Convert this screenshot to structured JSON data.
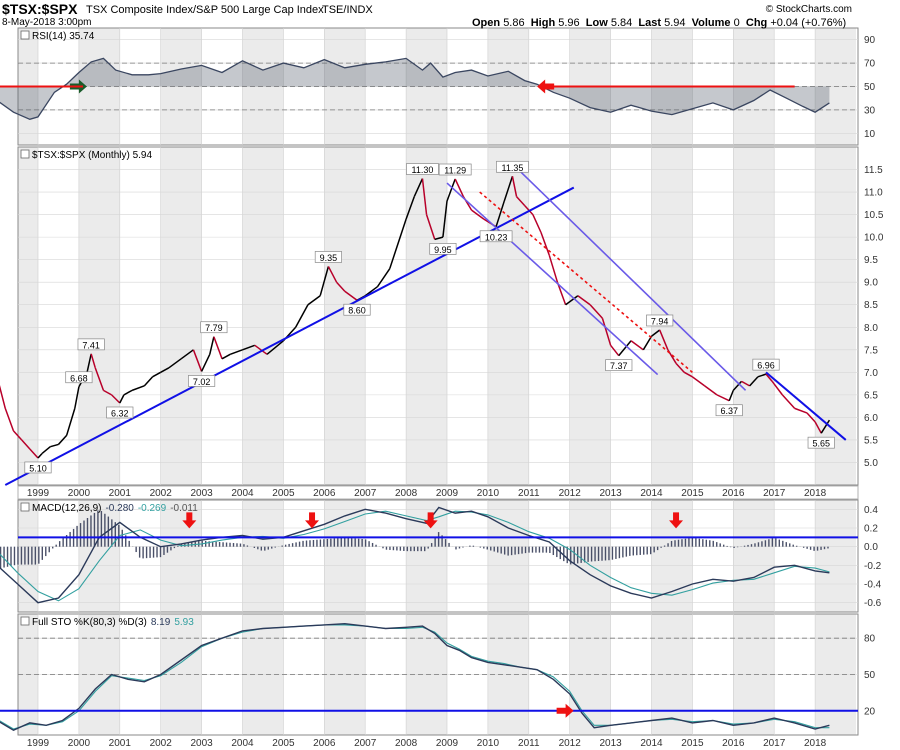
{
  "header": {
    "symbol": "$TSX:$SPX",
    "description": "TSX Composite Index/S&P 500 Large Cap Index",
    "exchange": "TSE/INDX",
    "date": "8-May-2018 3:00pm",
    "copyright": "© StockCharts.com",
    "open_label": "Open",
    "open": "5.86",
    "high_label": "High",
    "high": "5.96",
    "low_label": "Low",
    "low": "5.84",
    "last_label": "Last",
    "last": "5.94",
    "volume_label": "Volume",
    "volume": "0",
    "chg_label": "Chg",
    "chg": "+0.04 (+0.76%)"
  },
  "colors": {
    "blue": "#1010e6",
    "red": "#ee1111",
    "purple": "#6a5ae8",
    "price": "#000000",
    "price_down": "#b8002a",
    "signal": "#33a0a0",
    "macd": "#2b3a5a",
    "hist": "#4a5068",
    "area": "#5a6070"
  },
  "chart_data": [
    {
      "type": "line",
      "panel": "rsi",
      "label": "RSI(14) 35.74",
      "ylim": [
        0,
        100
      ],
      "yticks": [
        "90",
        "70",
        "50",
        "30",
        "10"
      ],
      "guides": [
        70,
        50,
        30
      ],
      "x": [
        1998.0,
        1998.4,
        1998.8,
        1999.0,
        1999.4,
        1999.7,
        2000.0,
        2000.3,
        2000.6,
        2000.9,
        2001.3,
        2001.7,
        2002.0,
        2002.5,
        2003.0,
        2003.5,
        2004.0,
        2004.5,
        2005.0,
        2005.5,
        2006.0,
        2006.5,
        2007.0,
        2007.5,
        2008.0,
        2008.4,
        2008.6,
        2008.9,
        2009.2,
        2009.6,
        2010.0,
        2010.5,
        2010.9,
        2011.2,
        2011.6,
        2012.0,
        2012.5,
        2013.0,
        2013.5,
        2014.0,
        2014.5,
        2015.0,
        2015.5,
        2016.0,
        2016.5,
        2016.9,
        2017.3,
        2017.7,
        2018.0,
        2018.35
      ],
      "values": [
        38,
        28,
        22,
        24,
        45,
        52,
        62,
        71,
        74,
        64,
        60,
        60,
        61,
        65,
        68,
        62,
        72,
        64,
        70,
        66,
        73,
        66,
        69,
        71,
        74,
        64,
        70,
        58,
        62,
        64,
        59,
        63,
        55,
        52,
        45,
        40,
        32,
        28,
        34,
        29,
        26,
        31,
        36,
        30,
        38,
        47,
        40,
        33,
        28,
        36
      ],
      "annotations": [
        {
          "type": "arrow",
          "color": "green",
          "x": 2000.0,
          "y": 50,
          "direction": "right"
        },
        {
          "type": "arrow",
          "color": "red",
          "x": 2011.4,
          "y": 50,
          "direction": "left"
        },
        {
          "type": "hline",
          "color": "red",
          "y": 50,
          "x0": 1998.0,
          "x1": 2000.1
        },
        {
          "type": "hline",
          "color": "red",
          "y": 50,
          "x0": 2011.5,
          "x1": 2017.5
        }
      ]
    },
    {
      "type": "line",
      "panel": "price",
      "label": "$TSX:$SPX (Monthly) 5.94",
      "ylim": [
        4.5,
        12.0
      ],
      "yticks": [
        "11.5",
        "11.0",
        "10.5",
        "10.0",
        "9.5",
        "9.0",
        "8.5",
        "8.0",
        "7.5",
        "7.0",
        "6.5",
        "6.0",
        "5.5",
        "5.0"
      ],
      "x": [
        1998.0,
        1998.2,
        1998.4,
        1998.6,
        1998.8,
        1999.0,
        1999.1,
        1999.3,
        1999.5,
        1999.7,
        1999.9,
        2000.0,
        2000.2,
        2000.3,
        2000.4,
        2000.6,
        2000.8,
        2001.0,
        2001.1,
        2001.3,
        2001.6,
        2001.8,
        2002.0,
        2002.2,
        2002.5,
        2002.8,
        2003.0,
        2003.2,
        2003.3,
        2003.5,
        2003.7,
        2004.0,
        2004.3,
        2004.6,
        2005.0,
        2005.3,
        2005.6,
        2005.9,
        2006.1,
        2006.3,
        2006.5,
        2006.8,
        2007.0,
        2007.3,
        2007.6,
        2008.0,
        2008.2,
        2008.4,
        2008.5,
        2008.7,
        2008.9,
        2009.0,
        2009.2,
        2009.4,
        2009.6,
        2009.9,
        2010.2,
        2010.4,
        2010.6,
        2010.7,
        2010.9,
        2011.1,
        2011.3,
        2011.5,
        2011.7,
        2011.9,
        2012.2,
        2012.5,
        2012.8,
        2013.0,
        2013.2,
        2013.5,
        2013.8,
        2014.0,
        2014.2,
        2014.4,
        2014.6,
        2014.8,
        2015.0,
        2015.3,
        2015.6,
        2015.9,
        2016.0,
        2016.2,
        2016.4,
        2016.6,
        2016.8,
        2016.95,
        2017.2,
        2017.5,
        2017.8,
        2018.0,
        2018.15,
        2018.35
      ],
      "values": [
        6.9,
        6.2,
        5.7,
        5.5,
        5.3,
        5.1,
        5.2,
        5.35,
        5.4,
        5.6,
        6.2,
        6.68,
        7.0,
        7.41,
        7.1,
        6.6,
        6.5,
        6.32,
        6.5,
        6.6,
        6.7,
        6.9,
        7.0,
        7.1,
        7.3,
        7.5,
        7.02,
        7.4,
        7.79,
        7.3,
        7.4,
        7.5,
        7.6,
        7.4,
        7.7,
        8.0,
        8.5,
        8.7,
        9.35,
        9.0,
        8.8,
        8.6,
        8.7,
        8.9,
        9.3,
        10.4,
        10.9,
        11.3,
        10.5,
        9.95,
        10.0,
        10.8,
        11.29,
        10.9,
        10.6,
        10.4,
        10.23,
        10.8,
        11.35,
        10.9,
        10.7,
        10.5,
        10.1,
        9.6,
        9.0,
        8.5,
        8.7,
        8.5,
        8.2,
        7.6,
        7.37,
        7.7,
        7.5,
        7.8,
        7.94,
        7.5,
        7.2,
        7.0,
        6.9,
        6.7,
        6.5,
        6.37,
        6.6,
        6.8,
        6.7,
        6.9,
        6.96,
        6.8,
        6.5,
        6.2,
        6.1,
        5.9,
        5.65,
        5.94
      ],
      "labels": [
        {
          "x": 1999.0,
          "y": 5.1,
          "text": "5.10",
          "pos": "below"
        },
        {
          "x": 2000.3,
          "y": 7.41,
          "text": "7.41",
          "pos": "above"
        },
        {
          "x": 2000.0,
          "y": 6.68,
          "text": "6.68",
          "pos": "above"
        },
        {
          "x": 2001.0,
          "y": 6.32,
          "text": "6.32",
          "pos": "below"
        },
        {
          "x": 2003.3,
          "y": 7.79,
          "text": "7.79",
          "pos": "above"
        },
        {
          "x": 2003.0,
          "y": 7.02,
          "text": "7.02",
          "pos": "below"
        },
        {
          "x": 2006.1,
          "y": 9.35,
          "text": "9.35",
          "pos": "above"
        },
        {
          "x": 2006.8,
          "y": 8.6,
          "text": "8.60",
          "pos": "below"
        },
        {
          "x": 2008.4,
          "y": 11.3,
          "text": "11.30",
          "pos": "above"
        },
        {
          "x": 2008.9,
          "y": 9.95,
          "text": "9.95",
          "pos": "below"
        },
        {
          "x": 2009.2,
          "y": 11.29,
          "text": "11.29",
          "pos": "above"
        },
        {
          "x": 2010.2,
          "y": 10.23,
          "text": "10.23",
          "pos": "below"
        },
        {
          "x": 2010.6,
          "y": 11.35,
          "text": "11.35",
          "pos": "above"
        },
        {
          "x": 2013.2,
          "y": 7.37,
          "text": "7.37",
          "pos": "below"
        },
        {
          "x": 2014.2,
          "y": 7.94,
          "text": "7.94",
          "pos": "above"
        },
        {
          "x": 2015.9,
          "y": 6.37,
          "text": "6.37",
          "pos": "below"
        },
        {
          "x": 2016.8,
          "y": 6.96,
          "text": "6.96",
          "pos": "above"
        },
        {
          "x": 2018.15,
          "y": 5.65,
          "text": "5.65",
          "pos": "below"
        }
      ],
      "trendlines": [
        {
          "color": "blue",
          "style": "solid",
          "x0": 1998.2,
          "y0": 4.5,
          "x1": 2012.1,
          "y1": 11.1
        },
        {
          "color": "blue",
          "style": "solid",
          "x0": 2016.8,
          "y0": 7.0,
          "x1": 2018.75,
          "y1": 5.5
        },
        {
          "color": "purple",
          "style": "solid",
          "x0": 2009.0,
          "y0": 11.2,
          "x1": 2014.15,
          "y1": 6.95
        },
        {
          "color": "purple",
          "style": "solid",
          "x0": 2010.8,
          "y0": 11.45,
          "x1": 2016.3,
          "y1": 6.6
        },
        {
          "color": "red",
          "style": "dotted",
          "x0": 2009.8,
          "y0": 11.0,
          "x1": 2015.0,
          "y1": 7.0
        }
      ]
    },
    {
      "type": "line",
      "panel": "macd",
      "label": "MACD(12,26,9)",
      "label_values": [
        "-0.280",
        "-0.269",
        "-0.011"
      ],
      "ylim": [
        -0.7,
        0.5
      ],
      "yticks": [
        "0.4",
        "0.2",
        "0.0",
        "-0.2",
        "-0.4",
        "-0.6"
      ],
      "x": [
        1998.0,
        1998.5,
        1999.0,
        1999.5,
        2000.0,
        2000.5,
        2001.0,
        2001.5,
        2002.0,
        2002.5,
        2003.0,
        2003.5,
        2004.0,
        2004.5,
        2005.0,
        2005.5,
        2006.0,
        2006.5,
        2007.0,
        2007.5,
        2008.0,
        2008.5,
        2008.8,
        2009.2,
        2009.6,
        2010.0,
        2010.5,
        2011.0,
        2011.5,
        2012.0,
        2012.5,
        2013.0,
        2013.5,
        2014.0,
        2014.5,
        2015.0,
        2015.5,
        2016.0,
        2016.5,
        2017.0,
        2017.5,
        2018.0,
        2018.35
      ],
      "values": [
        -0.2,
        -0.4,
        -0.6,
        -0.55,
        -0.3,
        0.1,
        0.26,
        0.1,
        0.0,
        0.03,
        0.07,
        0.1,
        0.12,
        0.08,
        0.1,
        0.17,
        0.24,
        0.33,
        0.4,
        0.36,
        0.3,
        0.25,
        0.42,
        0.36,
        0.38,
        0.32,
        0.2,
        0.12,
        0.05,
        -0.15,
        -0.3,
        -0.42,
        -0.5,
        -0.55,
        -0.48,
        -0.4,
        -0.35,
        -0.37,
        -0.33,
        -0.22,
        -0.2,
        -0.26,
        -0.28
      ],
      "signal": [
        -0.05,
        -0.28,
        -0.48,
        -0.58,
        -0.45,
        -0.15,
        0.12,
        0.18,
        0.07,
        0.01,
        0.03,
        0.07,
        0.1,
        0.11,
        0.09,
        0.13,
        0.19,
        0.27,
        0.35,
        0.38,
        0.33,
        0.28,
        0.32,
        0.38,
        0.37,
        0.34,
        0.26,
        0.16,
        0.09,
        -0.03,
        -0.2,
        -0.33,
        -0.44,
        -0.5,
        -0.52,
        -0.46,
        -0.39,
        -0.36,
        -0.35,
        -0.28,
        -0.21,
        -0.23,
        -0.27
      ],
      "zero_line": 0.1,
      "annotations": [
        {
          "type": "arrow",
          "color": "red",
          "x": 2002.7,
          "direction": "down"
        },
        {
          "type": "arrow",
          "color": "red",
          "x": 2005.7,
          "direction": "down"
        },
        {
          "type": "arrow",
          "color": "red",
          "x": 2008.6,
          "direction": "down"
        },
        {
          "type": "arrow",
          "color": "red",
          "x": 2014.6,
          "direction": "down"
        }
      ]
    },
    {
      "type": "line",
      "panel": "stochastics",
      "label": "Full STO %K(80,3) %D(3)",
      "label_values": [
        "8.19",
        "5.93"
      ],
      "ylim": [
        0,
        100
      ],
      "yticks": [
        "80",
        "50",
        "20"
      ],
      "guides": [
        80,
        50,
        20
      ],
      "x": [
        1998.0,
        1998.4,
        1998.8,
        1999.2,
        1999.6,
        2000.0,
        2000.4,
        2000.8,
        2001.2,
        2001.6,
        2002.0,
        2002.5,
        2003.0,
        2003.5,
        2004.0,
        2004.5,
        2005.0,
        2005.5,
        2006.0,
        2006.5,
        2007.0,
        2007.5,
        2008.0,
        2008.4,
        2008.7,
        2009.0,
        2009.3,
        2009.6,
        2010.0,
        2010.4,
        2010.8,
        2011.2,
        2011.6,
        2012.0,
        2012.3,
        2012.6,
        2013.0,
        2013.5,
        2014.0,
        2014.5,
        2015.0,
        2015.5,
        2016.0,
        2016.5,
        2017.0,
        2017.5,
        2018.0,
        2018.35
      ],
      "values": [
        12,
        4,
        10,
        8,
        12,
        22,
        38,
        50,
        46,
        44,
        50,
        62,
        74,
        80,
        86,
        88,
        89,
        90,
        91,
        92,
        90,
        88,
        89,
        90,
        84,
        74,
        70,
        64,
        60,
        58,
        56,
        54,
        46,
        34,
        18,
        6,
        8,
        10,
        12,
        14,
        10,
        12,
        8,
        10,
        14,
        10,
        5,
        8
      ],
      "signal": [
        13,
        5,
        9,
        8,
        11,
        20,
        36,
        49,
        47,
        45,
        49,
        60,
        73,
        80,
        85,
        88,
        89,
        90,
        91,
        91,
        90,
        88,
        88,
        89,
        85,
        76,
        71,
        65,
        61,
        59,
        56,
        54,
        48,
        36,
        20,
        8,
        8,
        10,
        12,
        13,
        11,
        12,
        9,
        10,
        13,
        11,
        6,
        6
      ],
      "annotations": [
        {
          "type": "hline",
          "color": "blue",
          "y": 20
        },
        {
          "type": "arrow",
          "color": "red",
          "x": 2011.9,
          "y": 20,
          "direction": "right"
        }
      ]
    }
  ],
  "x_axis": {
    "years": [
      "1999",
      "2000",
      "2001",
      "2002",
      "2003",
      "2004",
      "2005",
      "2006",
      "2007",
      "2008",
      "2009",
      "2010",
      "2011",
      "2012",
      "2013",
      "2014",
      "2015",
      "2016",
      "2017",
      "2018"
    ]
  }
}
